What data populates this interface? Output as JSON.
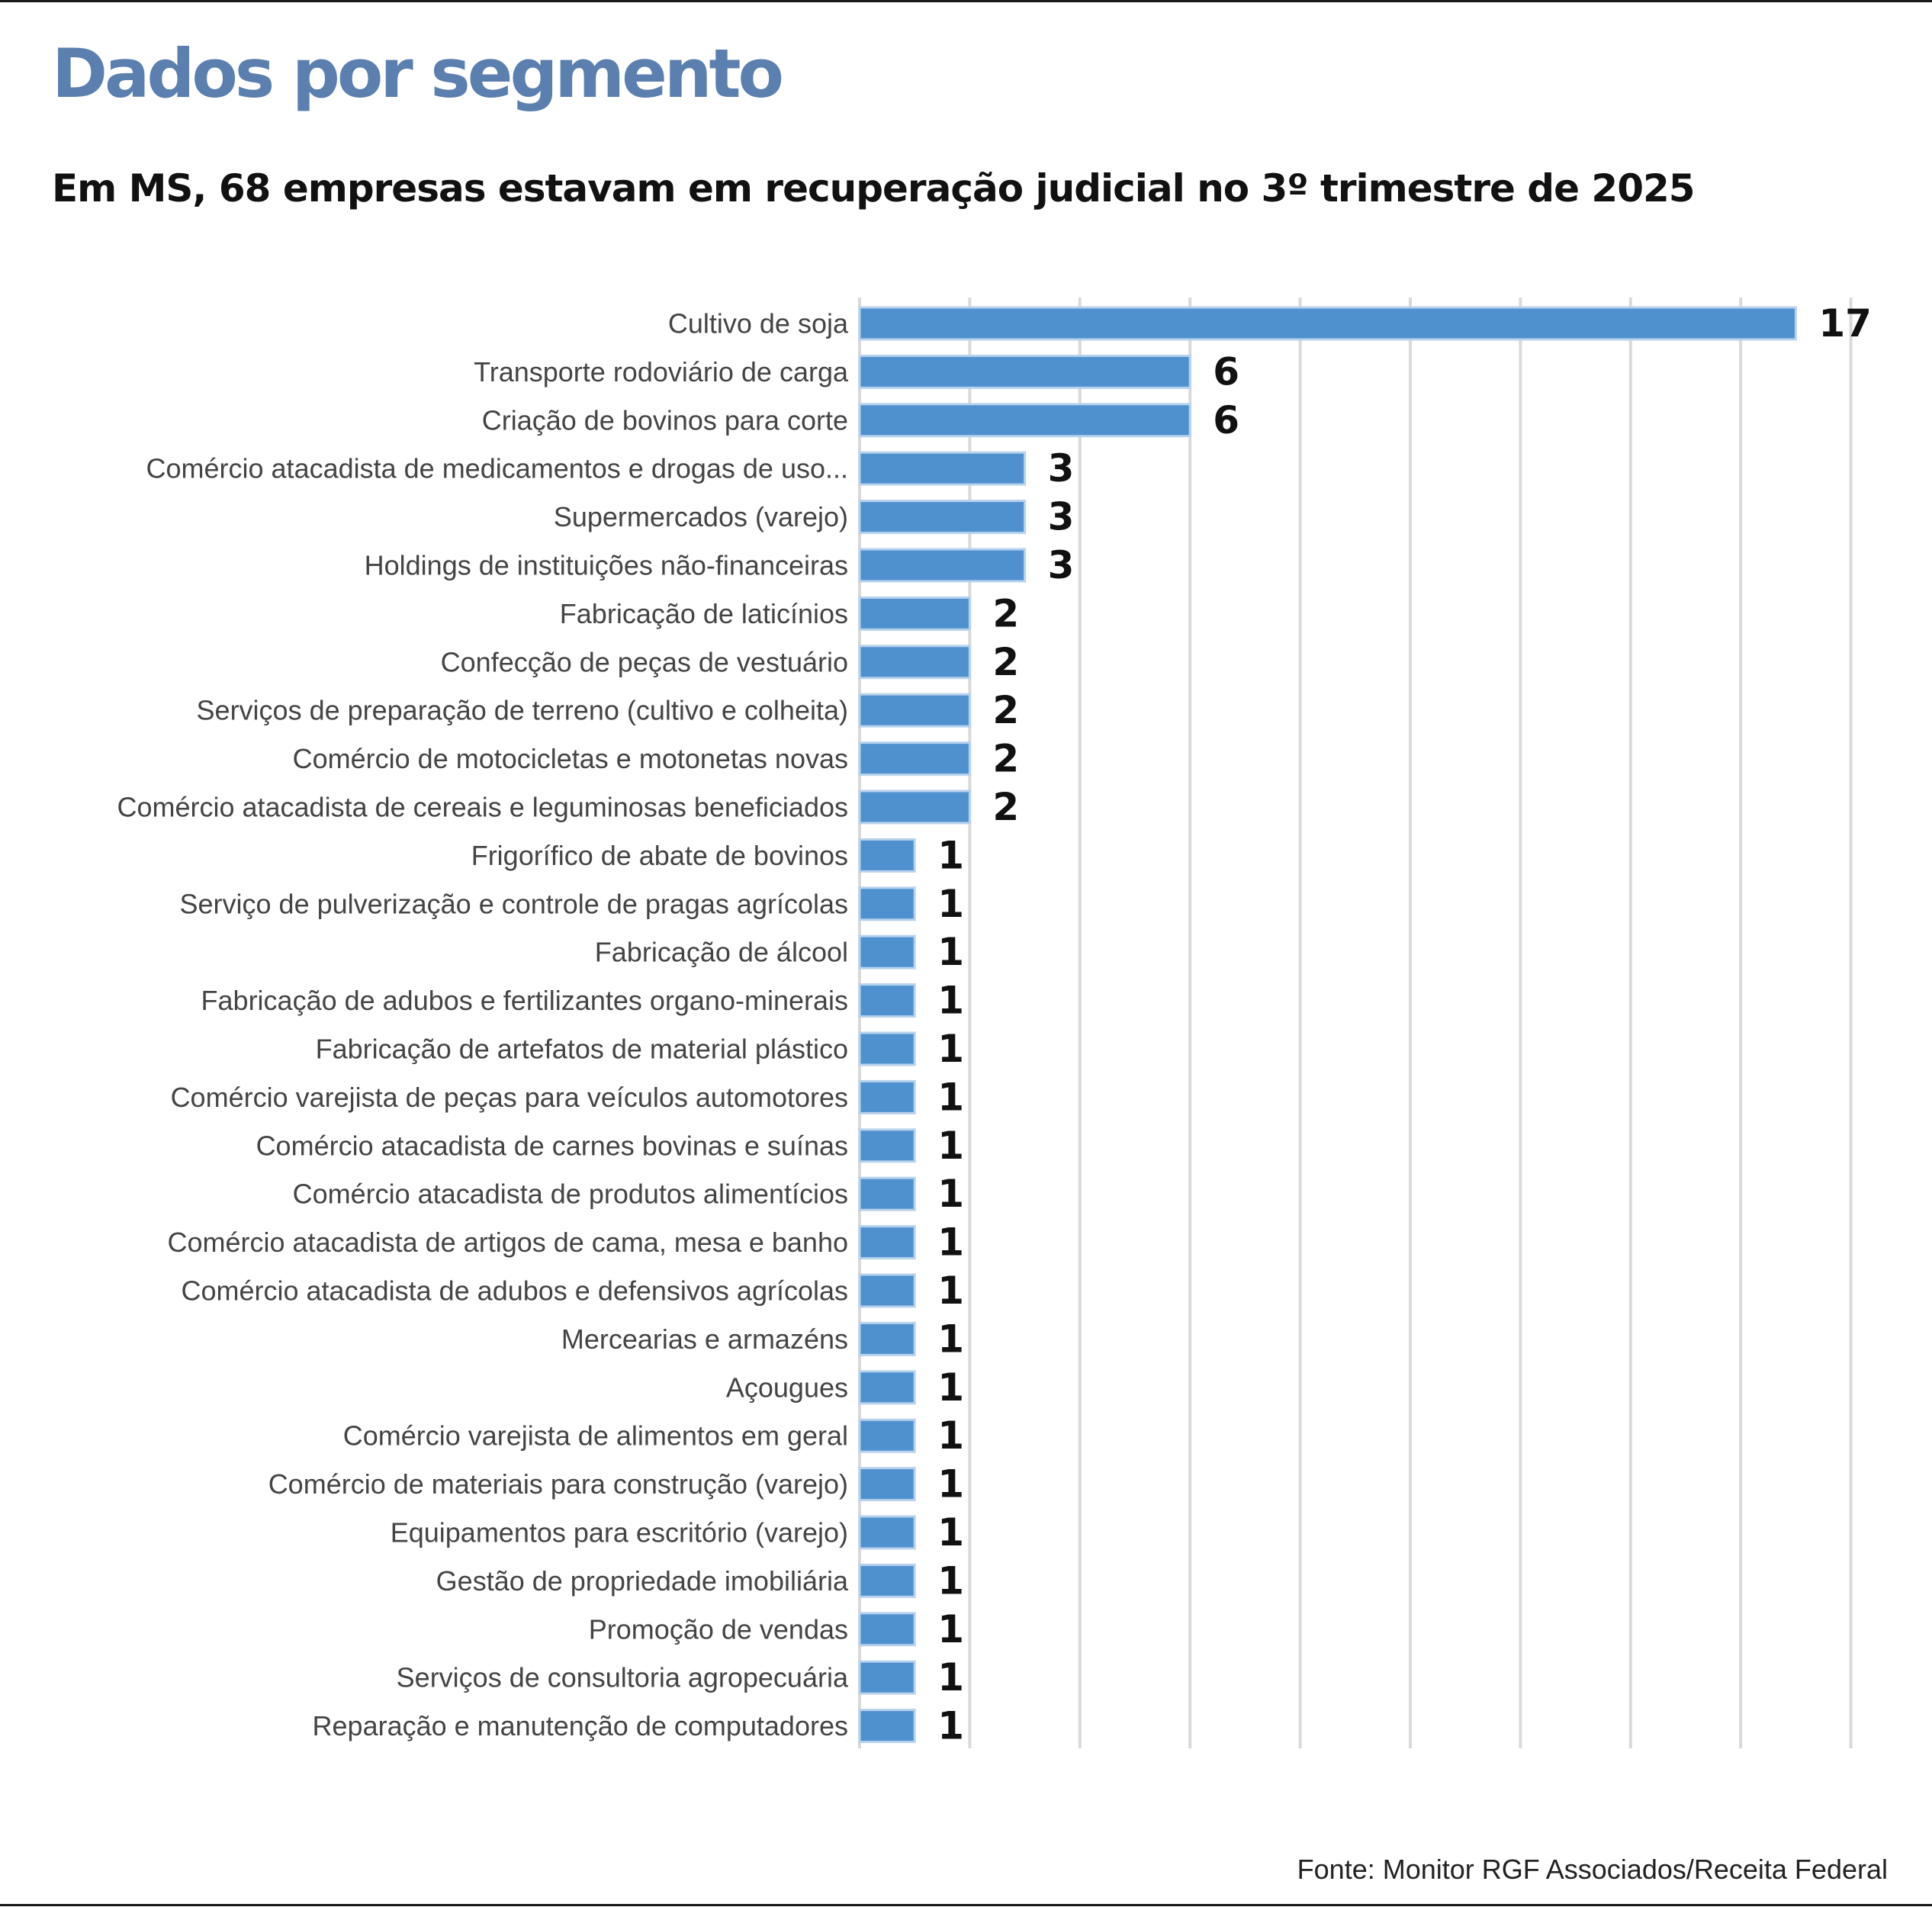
{
  "header": {
    "title": "Dados por segmento",
    "subtitle": "Em MS, 68 empresas estavam em recuperação judicial no 3º trimestre de 2025"
  },
  "source": "Fonte: Monitor RGF Associados/Receita Federal",
  "colors": {
    "title": "#5b7fae",
    "bar": "#4f91cf",
    "gridline": "#d9d9d9"
  },
  "chart_data": {
    "type": "bar",
    "orientation": "horizontal",
    "title": "Dados por segmento",
    "subtitle": "Em MS, 68 empresas estavam em recuperação judicial no 3º trimestre de 2025",
    "xlabel": "",
    "ylabel": "",
    "xlim": [
      0,
      18
    ],
    "grid": true,
    "categories": [
      "Cultivo de soja",
      "Transporte rodoviário de carga",
      "Criação de bovinos para corte",
      "Comércio atacadista de medicamentos e drogas de uso...",
      "Supermercados (varejo)",
      "Holdings de instituições não-financeiras",
      "Fabricação de laticínios",
      "Confecção de peças de vestuário",
      "Serviços de preparação de terreno (cultivo e colheita)",
      "Comércio de motocicletas e motonetas novas",
      "Comércio atacadista de cereais e leguminosas beneficiados",
      "Frigorífico de abate de bovinos",
      "Serviço de pulverização e controle de pragas agrícolas",
      "Fabricação de álcool",
      "Fabricação de adubos e fertilizantes organo-minerais",
      "Fabricação de artefatos de material plástico",
      "Comércio varejista de peças para veículos automotores",
      "Comércio atacadista de carnes bovinas e suínas",
      "Comércio atacadista de produtos alimentícios",
      "Comércio atacadista de artigos de cama, mesa e banho",
      "Comércio atacadista de adubos e defensivos agrícolas",
      "Mercearias e armazéns",
      "Açougues",
      "Comércio varejista de alimentos em geral",
      "Comércio de materiais para construção (varejo)",
      "Equipamentos para escritório (varejo)",
      "Gestão de propriedade imobiliária",
      "Promoção de vendas",
      "Serviços de consultoria agropecuária",
      "Reparação e manutenção de computadores"
    ],
    "values": [
      17,
      6,
      6,
      3,
      3,
      3,
      2,
      2,
      2,
      2,
      2,
      1,
      1,
      1,
      1,
      1,
      1,
      1,
      1,
      1,
      1,
      1,
      1,
      1,
      1,
      1,
      1,
      1,
      1,
      1
    ]
  }
}
